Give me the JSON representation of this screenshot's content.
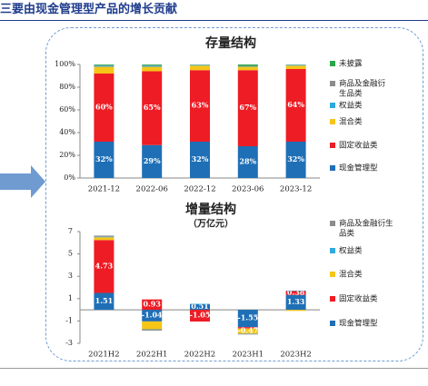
{
  "header": {
    "title": "三要由现金管理型产品的增长贡献"
  },
  "colors": {
    "现金管理型": "#1f6fb6",
    "固定收益类": "#ee1c25",
    "混合类": "#f5c518",
    "权益类": "#2eaadc",
    "商品及金融衍生品类": "#8c8c8c",
    "未披露": "#2aa54a",
    "frame": "#6f9bd1",
    "arrow": "#6f9bd1"
  },
  "chart_data": [
    {
      "type": "bar",
      "stacked": true,
      "title": "存量结构",
      "categories": [
        "2021-12",
        "2022-06",
        "2022-12",
        "2023-06",
        "2023-12"
      ],
      "y_ticks": [
        "0%",
        "20%",
        "40%",
        "60%",
        "80%",
        "100%"
      ],
      "ylim": [
        0,
        100
      ],
      "grid": false,
      "legend_position": "right",
      "series": [
        {
          "name": "现金管理型",
          "values": [
            32,
            29,
            32,
            28,
            32
          ],
          "labels": [
            "32%",
            "29%",
            "32%",
            "28%",
            "32%"
          ]
        },
        {
          "name": "固定收益类",
          "values": [
            60,
            65,
            63,
            67,
            64
          ],
          "labels": [
            "60%",
            "65%",
            "63%",
            "67%",
            "64%"
          ]
        },
        {
          "name": "混合类",
          "values": [
            6,
            4,
            4,
            3,
            3
          ],
          "labels": []
        },
        {
          "name": "权益类",
          "values": [
            1,
            1,
            0.5,
            0.5,
            0.5
          ],
          "labels": []
        },
        {
          "name": "商品及金融衍生品类",
          "values": [
            0.3,
            0.3,
            0.3,
            0.3,
            0.3
          ],
          "labels": []
        },
        {
          "name": "未披露",
          "values": [
            0.7,
            0.7,
            0.2,
            1.2,
            0.2
          ],
          "labels": []
        }
      ],
      "legend": [
        "未披露",
        "商品及金融衍生品类",
        "权益类",
        "混合类",
        "固定收益类",
        "现金管理型"
      ]
    },
    {
      "type": "bar",
      "stacked": true,
      "title": "增量结构",
      "subtitle": "（万亿元）",
      "categories": [
        "2021H2",
        "2022H1",
        "2022H2",
        "2023H1",
        "2023H2"
      ],
      "y_ticks": [
        "-3",
        "-1",
        "1",
        "3",
        "5",
        "7"
      ],
      "ylim": [
        -3,
        7
      ],
      "grid": false,
      "legend_position": "right",
      "series": [
        {
          "name": "现金管理型",
          "values": [
            1.51,
            -1.04,
            0.51,
            -1.55,
            1.33
          ],
          "labels": [
            "1.51",
            "-1.04",
            "0.51",
            "-1.55",
            "1.33"
          ]
        },
        {
          "name": "固定收益类",
          "values": [
            4.73,
            0.93,
            -1.05,
            -0.12,
            0.38
          ],
          "labels": [
            "4.73",
            "0.93",
            "-1.05",
            "",
            "0.38"
          ]
        },
        {
          "name": "混合类",
          "values": [
            0.25,
            -0.7,
            0,
            -0.47,
            -0.1
          ],
          "labels": [
            "",
            "",
            "",
            "-0.47",
            ""
          ]
        },
        {
          "name": "权益类",
          "values": [
            0.05,
            -0.02,
            0.02,
            -0.02,
            0.01
          ],
          "labels": []
        },
        {
          "name": "商品及金融衍生品类",
          "values": [
            0.1,
            -0.1,
            0,
            -0.05,
            0
          ],
          "labels": []
        }
      ],
      "legend": [
        "商品及金融衍生品类",
        "权益类",
        "混合类",
        "固定收益类",
        "现金管理型"
      ]
    }
  ]
}
